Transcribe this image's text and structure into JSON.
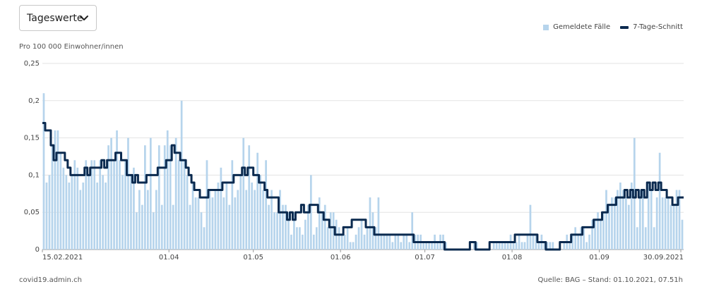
{
  "dropdown": {
    "label": "Tageswerte"
  },
  "legend": {
    "bars": "Gemeldete Fälle",
    "line": "7-Tage-Schnitt"
  },
  "unit_label": "Pro 100 000 Einwohner/innen",
  "footer": {
    "source_site": "covid19.admin.ch",
    "source": "Quelle: BAG – Stand: 01.10.2021, 07.51h"
  },
  "colors": {
    "bars": "#b6d4ec",
    "line": "#0b2a4f",
    "grid": "#e3e3e3",
    "axis": "#999999"
  },
  "chart_data": {
    "type": "bar",
    "start_date": "15.02.2021",
    "end_date": "30.09.2021",
    "ylim": [
      0,
      0.25
    ],
    "yticks": [
      "0",
      "0,05",
      "0,1",
      "0,15",
      "0,2",
      "0,25"
    ],
    "yticks_values": [
      0,
      0.05,
      0.1,
      0.15,
      0.2,
      0.25
    ],
    "xticks": [
      {
        "date": "15.02.2021",
        "label": "15.02.2021"
      },
      {
        "date": "01.04.2021",
        "label": "01.04"
      },
      {
        "date": "01.05.2021",
        "label": "01.05"
      },
      {
        "date": "01.06.2021",
        "label": "01.06"
      },
      {
        "date": "01.07.2021",
        "label": "01.07"
      },
      {
        "date": "01.08.2021",
        "label": "01.08"
      },
      {
        "date": "01.09.2021",
        "label": "01.09"
      },
      {
        "date": "30.09.2021",
        "label": "30.09.2021"
      }
    ],
    "series": [
      {
        "name": "Gemeldete Fälle",
        "type": "bar",
        "values": [
          0.21,
          0.09,
          0.1,
          0.14,
          0.16,
          0.16,
          0.13,
          0.11,
          0.1,
          0.09,
          0.1,
          0.12,
          0.11,
          0.08,
          0.09,
          0.12,
          0.1,
          0.12,
          0.12,
          0.09,
          0.12,
          0.1,
          0.09,
          0.14,
          0.15,
          0.12,
          0.16,
          0.12,
          0.1,
          0.12,
          0.15,
          0.1,
          0.11,
          0.05,
          0.08,
          0.06,
          0.14,
          0.08,
          0.15,
          0.05,
          0.08,
          0.14,
          0.06,
          0.14,
          0.16,
          0.14,
          0.06,
          0.15,
          0.12,
          0.2,
          0.12,
          0.1,
          0.06,
          0.09,
          0.07,
          0.07,
          0.05,
          0.03,
          0.12,
          0.08,
          0.07,
          0.08,
          0.09,
          0.11,
          0.07,
          0.09,
          0.06,
          0.12,
          0.07,
          0.08,
          0.1,
          0.15,
          0.08,
          0.14,
          0.09,
          0.08,
          0.13,
          0.1,
          0.08,
          0.12,
          0.06,
          0.08,
          0.05,
          0.05,
          0.08,
          0.06,
          0.06,
          0.05,
          0.02,
          0.05,
          0.03,
          0.03,
          0.02,
          0.04,
          0.06,
          0.1,
          0.02,
          0.03,
          0.07,
          0.05,
          0.06,
          0.03,
          0.05,
          0.05,
          0.04,
          0.03,
          0.02,
          0.02,
          0.03,
          0.01,
          0.01,
          0.02,
          0.03,
          0.04,
          0.02,
          0.03,
          0.07,
          0.05,
          0.03,
          0.07,
          0.02,
          0.02,
          0.02,
          0.02,
          0.01,
          0.02,
          0.02,
          0.01,
          0.02,
          0.02,
          0.01,
          0.05,
          0.02,
          0.02,
          0.02,
          0.01,
          0.01,
          0.01,
          0.01,
          0.02,
          0.01,
          0.02,
          0.02,
          0.01,
          0,
          0,
          0,
          0,
          0,
          0,
          0,
          0,
          0,
          0.01,
          0.01,
          0,
          0,
          0,
          0,
          0,
          0.01,
          0.01,
          0.01,
          0.01,
          0.01,
          0.01,
          0.02,
          0.01,
          0.01,
          0.02,
          0.01,
          0.01,
          0.02,
          0.06,
          0.02,
          0.02,
          0.01,
          0.02,
          0.01,
          0.01,
          0.01,
          0.01,
          0,
          0,
          0,
          0.01,
          0.02,
          0.01,
          0.02,
          0.03,
          0.02,
          0.03,
          0.03,
          0.01,
          0.02,
          0.04,
          0.04,
          0.05,
          0.04,
          0.05,
          0.08,
          0.06,
          0.07,
          0.07,
          0.08,
          0.09,
          0.08,
          0.07,
          0.06,
          0.09,
          0.15,
          0.03,
          0.08,
          0.08,
          0.03,
          0.09,
          0.08,
          0.03,
          0.07,
          0.13,
          0.07,
          0.07,
          0.07,
          0.06,
          0.06,
          0.08,
          0.08,
          0.04,
          0.08,
          0.02,
          0.13,
          0.05,
          0.07,
          0.05,
          0.06,
          0.07,
          0.08,
          0.09,
          0.07,
          0.08,
          0.03,
          0.08,
          0.08,
          0.02,
          0.09,
          0.01
        ]
      },
      {
        "name": "7-Tage-Schnitt",
        "type": "line",
        "values": [
          0.17,
          0.16,
          0.16,
          0.14,
          0.12,
          0.13,
          0.13,
          0.13,
          0.12,
          0.11,
          0.1,
          0.1,
          0.1,
          0.1,
          0.1,
          0.11,
          0.1,
          0.11,
          0.11,
          0.11,
          0.11,
          0.12,
          0.11,
          0.12,
          0.12,
          0.12,
          0.13,
          0.13,
          0.12,
          0.12,
          0.1,
          0.1,
          0.09,
          0.1,
          0.09,
          0.09,
          0.09,
          0.1,
          0.1,
          0.1,
          0.1,
          0.11,
          0.11,
          0.11,
          0.12,
          0.12,
          0.14,
          0.13,
          0.13,
          0.12,
          0.12,
          0.11,
          0.1,
          0.09,
          0.08,
          0.08,
          0.07,
          0.07,
          0.07,
          0.08,
          0.08,
          0.08,
          0.08,
          0.08,
          0.09,
          0.09,
          0.09,
          0.09,
          0.1,
          0.1,
          0.1,
          0.11,
          0.1,
          0.11,
          0.11,
          0.1,
          0.1,
          0.09,
          0.09,
          0.08,
          0.07,
          0.07,
          0.07,
          0.07,
          0.05,
          0.05,
          0.05,
          0.04,
          0.05,
          0.04,
          0.05,
          0.05,
          0.06,
          0.05,
          0.05,
          0.06,
          0.06,
          0.06,
          0.05,
          0.05,
          0.04,
          0.04,
          0.03,
          0.03,
          0.02,
          0.02,
          0.02,
          0.03,
          0.03,
          0.03,
          0.04,
          0.04,
          0.04,
          0.04,
          0.04,
          0.03,
          0.03,
          0.03,
          0.02,
          0.02,
          0.02,
          0.02,
          0.02,
          0.02,
          0.02,
          0.02,
          0.02,
          0.02,
          0.02,
          0.02,
          0.02,
          0.02,
          0.01,
          0.01,
          0.01,
          0.01,
          0.01,
          0.01,
          0.01,
          0.01,
          0.01,
          0.01,
          0.01,
          0,
          0,
          0,
          0,
          0,
          0,
          0,
          0,
          0,
          0.01,
          0.01,
          0,
          0,
          0,
          0,
          0,
          0.01,
          0.01,
          0.01,
          0.01,
          0.01,
          0.01,
          0.01,
          0.01,
          0.01,
          0.02,
          0.02,
          0.02,
          0.02,
          0.02,
          0.02,
          0.02,
          0.02,
          0.01,
          0.01,
          0.01,
          0,
          0,
          0,
          0,
          0,
          0.01,
          0.01,
          0.01,
          0.01,
          0.02,
          0.02,
          0.02,
          0.02,
          0.03,
          0.03,
          0.03,
          0.03,
          0.04,
          0.04,
          0.04,
          0.05,
          0.05,
          0.06,
          0.06,
          0.06,
          0.07,
          0.07,
          0.07,
          0.08,
          0.07,
          0.08,
          0.07,
          0.08,
          0.07,
          0.08,
          0.07,
          0.09,
          0.08,
          0.09,
          0.08,
          0.09,
          0.08,
          0.08,
          0.07,
          0.07,
          0.06,
          0.06,
          0.07,
          0.07,
          0.06,
          0.06,
          0.06,
          0.06,
          0.06,
          0.06,
          0.07,
          0.07,
          0.06,
          0.07,
          0.06,
          0.07,
          0.07
        ]
      }
    ]
  }
}
